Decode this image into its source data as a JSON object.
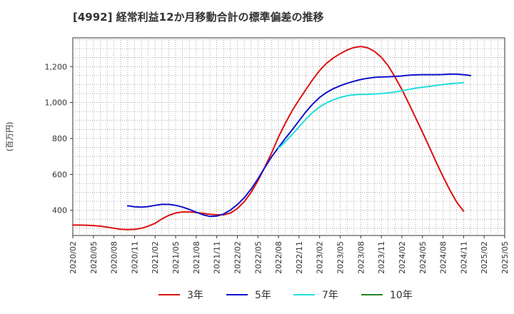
{
  "chart_data": {
    "type": "line",
    "title": "[4992]  経常利益12か月移動合計の標準偏差の推移",
    "ylabel": "(百万円)",
    "xlabel": "",
    "ylim": [
      260,
      1360
    ],
    "yticks": [
      400,
      600,
      800,
      1000,
      1200
    ],
    "ytick_labels": [
      "400",
      "600",
      "800",
      "1,000",
      "1,200"
    ],
    "xlim": [
      "2020-02",
      "2025-05"
    ],
    "xtick_labels": [
      "2020/02",
      "2020/05",
      "2020/08",
      "2020/11",
      "2021/02",
      "2021/05",
      "2021/08",
      "2021/11",
      "2022/02",
      "2022/05",
      "2022/08",
      "2022/11",
      "2023/02",
      "2023/05",
      "2023/08",
      "2023/11",
      "2024/02",
      "2024/05",
      "2024/08",
      "2024/11",
      "2025/02",
      "2025/05"
    ],
    "grid": true,
    "legend_position": "bottom",
    "series": [
      {
        "name": "3年",
        "color": "#dd1111",
        "points": [
          [
            "2020-02",
            318
          ],
          [
            "2020-03",
            318
          ],
          [
            "2020-04",
            317
          ],
          [
            "2020-05",
            315
          ],
          [
            "2020-06",
            312
          ],
          [
            "2020-07",
            307
          ],
          [
            "2020-08",
            300
          ],
          [
            "2020-09",
            295
          ],
          [
            "2020-10",
            293
          ],
          [
            "2020-11",
            294
          ],
          [
            "2020-12",
            300
          ],
          [
            "2021-01",
            312
          ],
          [
            "2021-02",
            328
          ],
          [
            "2021-03",
            352
          ],
          [
            "2021-04",
            372
          ],
          [
            "2021-05",
            385
          ],
          [
            "2021-06",
            391
          ],
          [
            "2021-07",
            391
          ],
          [
            "2021-08",
            388
          ],
          [
            "2021-09",
            383
          ],
          [
            "2021-10",
            378
          ],
          [
            "2021-11",
            375
          ],
          [
            "2021-12",
            375
          ],
          [
            "2022-01",
            385
          ],
          [
            "2022-02",
            410
          ],
          [
            "2022-03",
            448
          ],
          [
            "2022-04",
            500
          ],
          [
            "2022-05",
            565
          ],
          [
            "2022-06",
            640
          ],
          [
            "2022-07",
            720
          ],
          [
            "2022-08",
            808
          ],
          [
            "2022-09",
            885
          ],
          [
            "2022-10",
            955
          ],
          [
            "2022-11",
            1015
          ],
          [
            "2022-12",
            1072
          ],
          [
            "2023-01",
            1128
          ],
          [
            "2023-02",
            1178
          ],
          [
            "2023-03",
            1218
          ],
          [
            "2023-04",
            1248
          ],
          [
            "2023-05",
            1272
          ],
          [
            "2023-06",
            1292
          ],
          [
            "2023-07",
            1306
          ],
          [
            "2023-08",
            1312
          ],
          [
            "2023-09",
            1305
          ],
          [
            "2023-10",
            1285
          ],
          [
            "2023-11",
            1252
          ],
          [
            "2023-12",
            1205
          ],
          [
            "2024-01",
            1142
          ],
          [
            "2024-02",
            1072
          ],
          [
            "2024-03",
            995
          ],
          [
            "2024-04",
            915
          ],
          [
            "2024-05",
            835
          ],
          [
            "2024-06",
            752
          ],
          [
            "2024-07",
            668
          ],
          [
            "2024-08",
            588
          ],
          [
            "2024-09",
            512
          ],
          [
            "2024-10",
            445
          ],
          [
            "2024-11",
            395
          ]
        ]
      },
      {
        "name": "5年",
        "color": "#1111cc",
        "points": [
          [
            "2020-10",
            425
          ],
          [
            "2020-11",
            420
          ],
          [
            "2020-12",
            418
          ],
          [
            "2021-01",
            421
          ],
          [
            "2021-02",
            428
          ],
          [
            "2021-03",
            433
          ],
          [
            "2021-04",
            433
          ],
          [
            "2021-05",
            428
          ],
          [
            "2021-06",
            418
          ],
          [
            "2021-07",
            405
          ],
          [
            "2021-08",
            390
          ],
          [
            "2021-09",
            375
          ],
          [
            "2021-10",
            366
          ],
          [
            "2021-11",
            368
          ],
          [
            "2021-12",
            380
          ],
          [
            "2022-01",
            402
          ],
          [
            "2022-02",
            432
          ],
          [
            "2022-03",
            470
          ],
          [
            "2022-04",
            518
          ],
          [
            "2022-05",
            575
          ],
          [
            "2022-06",
            638
          ],
          [
            "2022-07",
            698
          ],
          [
            "2022-08",
            750
          ],
          [
            "2022-09",
            800
          ],
          [
            "2022-10",
            848
          ],
          [
            "2022-11",
            898
          ],
          [
            "2022-12",
            948
          ],
          [
            "2023-01",
            992
          ],
          [
            "2023-02",
            1028
          ],
          [
            "2023-03",
            1056
          ],
          [
            "2023-04",
            1077
          ],
          [
            "2023-05",
            1093
          ],
          [
            "2023-06",
            1107
          ],
          [
            "2023-07",
            1118
          ],
          [
            "2023-08",
            1128
          ],
          [
            "2023-09",
            1135
          ],
          [
            "2023-10",
            1140
          ],
          [
            "2023-11",
            1142
          ],
          [
            "2023-12",
            1143
          ],
          [
            "2024-01",
            1145
          ],
          [
            "2024-02",
            1148
          ],
          [
            "2024-03",
            1152
          ],
          [
            "2024-04",
            1154
          ],
          [
            "2024-05",
            1155
          ],
          [
            "2024-06",
            1155
          ],
          [
            "2024-07",
            1155
          ],
          [
            "2024-08",
            1156
          ],
          [
            "2024-09",
            1158
          ],
          [
            "2024-10",
            1158
          ],
          [
            "2024-11",
            1155
          ],
          [
            "2024-12",
            1150
          ]
        ]
      },
      {
        "name": "7年",
        "color": "#22dddd",
        "points": [
          [
            "2022-08",
            745
          ],
          [
            "2022-09",
            782
          ],
          [
            "2022-10",
            822
          ],
          [
            "2022-11",
            865
          ],
          [
            "2022-12",
            908
          ],
          [
            "2023-01",
            945
          ],
          [
            "2023-02",
            975
          ],
          [
            "2023-03",
            998
          ],
          [
            "2023-04",
            1015
          ],
          [
            "2023-05",
            1028
          ],
          [
            "2023-06",
            1038
          ],
          [
            "2023-07",
            1043
          ],
          [
            "2023-08",
            1045
          ],
          [
            "2023-09",
            1046
          ],
          [
            "2023-10",
            1048
          ],
          [
            "2023-11",
            1050
          ],
          [
            "2023-12",
            1053
          ],
          [
            "2024-01",
            1058
          ],
          [
            "2024-02",
            1066
          ],
          [
            "2024-03",
            1073
          ],
          [
            "2024-04",
            1080
          ],
          [
            "2024-05",
            1085
          ],
          [
            "2024-06",
            1090
          ],
          [
            "2024-07",
            1095
          ],
          [
            "2024-08",
            1100
          ],
          [
            "2024-09",
            1105
          ],
          [
            "2024-10",
            1108
          ],
          [
            "2024-11",
            1110
          ]
        ]
      },
      {
        "name": "10年",
        "color": "#228822",
        "points": []
      }
    ]
  }
}
